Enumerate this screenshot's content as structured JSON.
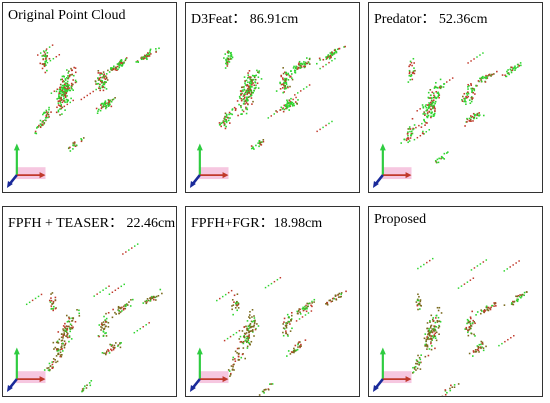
{
  "panels": [
    {
      "title": "Original Point Cloud",
      "variant": "dense"
    },
    {
      "title": "D3Feat： 86.91cm",
      "variant": "dense"
    },
    {
      "title": "Predator： 52.36cm",
      "variant": "sparse"
    },
    {
      "title": "FPFH + TEASER： 22.46cm",
      "variant": "aligned"
    },
    {
      "title": "FPFH+FGR：18.98cm",
      "variant": "aligned"
    },
    {
      "title": "Proposed",
      "variant": "aligned"
    }
  ],
  "colors": {
    "source_points": "#2fd42f",
    "target_points": "#c0392b",
    "overlap_points": "#7a6a1e",
    "axis_x": "#c0392b",
    "axis_y": "#2ecc40",
    "axis_z": "#1a2a9a"
  }
}
